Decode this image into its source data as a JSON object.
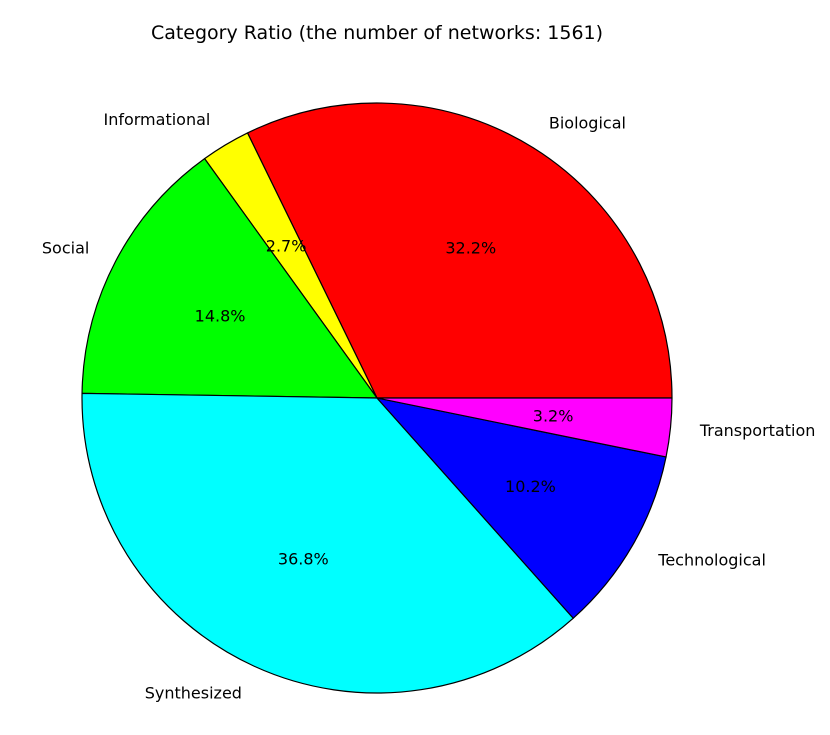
{
  "chart_data": {
    "type": "pie",
    "title": "Category Ratio (the number of networks: 1561)",
    "start_angle": 0,
    "direction": "counterclockwise",
    "slices": [
      {
        "label": "Biological",
        "pct_label": "32.2%",
        "value": 32.2,
        "color": "#ff0000"
      },
      {
        "label": "Informational",
        "pct_label": "2.7%",
        "value": 2.7,
        "color": "#ffff00"
      },
      {
        "label": "Social",
        "pct_label": "14.8%",
        "value": 14.8,
        "color": "#00ff00"
      },
      {
        "label": "Synthesized",
        "pct_label": "36.8%",
        "value": 36.8,
        "color": "#00ffff"
      },
      {
        "label": "Technological",
        "pct_label": "10.2%",
        "value": 10.2,
        "color": "#0000ff"
      },
      {
        "label": "Transportation",
        "pct_label": "3.2%",
        "value": 3.2,
        "color": "#ff00ff"
      }
    ],
    "edge_color": "#000000"
  }
}
